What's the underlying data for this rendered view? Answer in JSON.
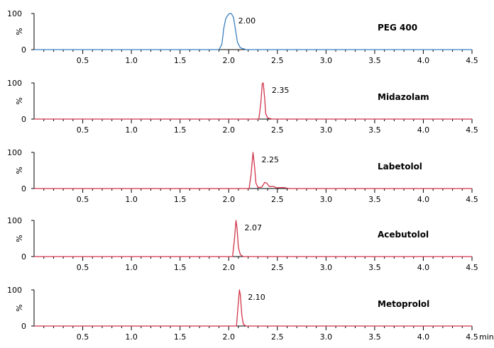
{
  "chart_data": {
    "type": "line",
    "x_unit": "min",
    "xlim": [
      0,
      4.5
    ],
    "ylim": [
      0,
      100
    ],
    "y_ticks": [
      "0",
      "%",
      "100"
    ],
    "x_ticks": [
      "0.5",
      "1.0",
      "1.5",
      "2.0",
      "2.5",
      "3.0",
      "3.5",
      "4.0",
      "4.5"
    ],
    "colors": {
      "peg": "#3a7fc0",
      "drug": "#d0354a"
    },
    "panels": [
      {
        "compound": "PEG 400",
        "peak_label": "2.00",
        "color": "#3a7fc0",
        "points": [
          [
            0,
            0
          ],
          [
            1.9,
            0
          ],
          [
            1.93,
            15
          ],
          [
            1.95,
            60
          ],
          [
            1.97,
            86
          ],
          [
            1.99,
            95
          ],
          [
            2.01,
            100
          ],
          [
            2.03,
            99
          ],
          [
            2.05,
            88
          ],
          [
            2.07,
            55
          ],
          [
            2.09,
            20
          ],
          [
            2.12,
            5
          ],
          [
            2.18,
            0
          ],
          [
            4.5,
            0
          ]
        ]
      },
      {
        "compound": "Midazolam",
        "peak_label": "2.35",
        "color": "#d0354a",
        "points": [
          [
            0,
            0
          ],
          [
            2.31,
            0
          ],
          [
            2.33,
            45
          ],
          [
            2.345,
            98
          ],
          [
            2.355,
            100
          ],
          [
            2.37,
            55
          ],
          [
            2.38,
            15
          ],
          [
            2.4,
            3
          ],
          [
            2.45,
            0
          ],
          [
            4.5,
            0
          ]
        ]
      },
      {
        "compound": "Labetolol",
        "peak_label": "2.25",
        "color": "#d0354a",
        "points": [
          [
            0,
            0
          ],
          [
            2.21,
            0
          ],
          [
            2.23,
            40
          ],
          [
            2.25,
            100
          ],
          [
            2.265,
            62
          ],
          [
            2.28,
            15
          ],
          [
            2.3,
            3
          ],
          [
            2.34,
            4
          ],
          [
            2.37,
            17
          ],
          [
            2.39,
            15
          ],
          [
            2.42,
            5
          ],
          [
            2.46,
            6
          ],
          [
            2.49,
            2
          ],
          [
            2.56,
            3
          ],
          [
            2.62,
            0
          ],
          [
            4.5,
            0
          ]
        ]
      },
      {
        "compound": "Acebutolol",
        "peak_label": "2.07",
        "color": "#d0354a",
        "points": [
          [
            0,
            0
          ],
          [
            2.04,
            0
          ],
          [
            2.06,
            50
          ],
          [
            2.075,
            100
          ],
          [
            2.085,
            80
          ],
          [
            2.1,
            25
          ],
          [
            2.12,
            5
          ],
          [
            2.15,
            0
          ],
          [
            4.5,
            0
          ]
        ]
      },
      {
        "compound": "Metoprolol",
        "peak_label": "2.10",
        "color": "#d0354a",
        "points": [
          [
            0,
            0
          ],
          [
            2.08,
            0
          ],
          [
            2.095,
            50
          ],
          [
            2.11,
            100
          ],
          [
            2.12,
            85
          ],
          [
            2.135,
            30
          ],
          [
            2.15,
            5
          ],
          [
            2.18,
            0
          ],
          [
            4.5,
            0
          ]
        ]
      }
    ]
  }
}
